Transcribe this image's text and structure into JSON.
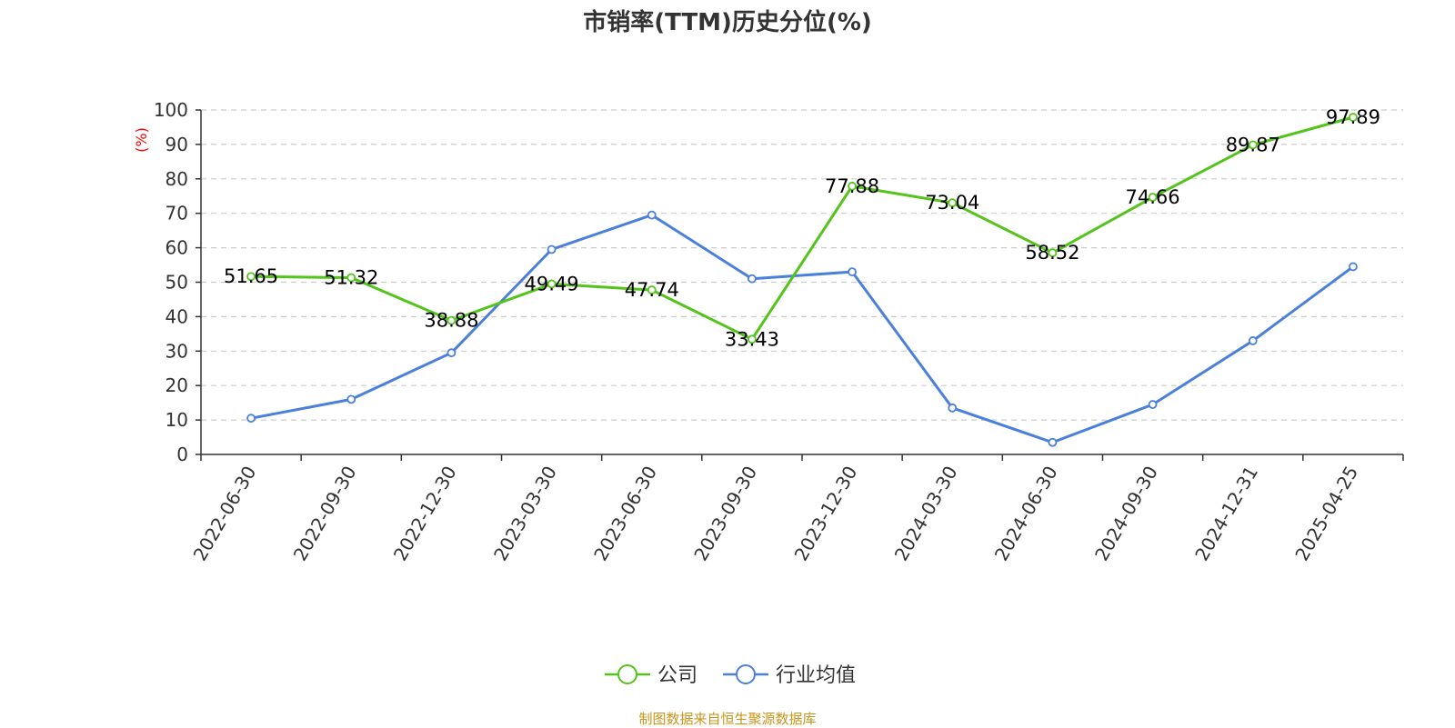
{
  "chart_data": {
    "type": "line",
    "title": "市销率(TTM)历史分位(%)",
    "ylabel": "(%)",
    "xlabel": "",
    "categories": [
      "2022-06-30",
      "2022-09-30",
      "2022-12-30",
      "2023-03-30",
      "2023-06-30",
      "2023-09-30",
      "2023-12-30",
      "2024-03-30",
      "2024-06-30",
      "2024-09-30",
      "2024-12-31",
      "2025-04-25"
    ],
    "yticks": [
      "0",
      "10",
      "20",
      "30",
      "40",
      "50",
      "60",
      "70",
      "80",
      "90",
      "100"
    ],
    "ylim": [
      0,
      100
    ],
    "grid": true,
    "legend_position": "bottom",
    "series": [
      {
        "name": "公司",
        "color": "#52c41a",
        "values": [
          51.65,
          51.32,
          38.88,
          49.49,
          47.74,
          33.43,
          77.88,
          73.04,
          58.52,
          74.66,
          89.87,
          97.89
        ],
        "labels": [
          "51.65",
          "51.32",
          "38.88",
          "49.49",
          "47.74",
          "33.43",
          "77.88",
          "73.04",
          "58.52",
          "74.66",
          "89.87",
          "97.89"
        ]
      },
      {
        "name": "行业均值",
        "color": "#4a7fdc",
        "values": [
          10.5,
          16.0,
          29.5,
          59.5,
          69.5,
          51.0,
          53.0,
          13.5,
          3.5,
          14.5,
          33.0,
          54.5
        ]
      }
    ]
  },
  "source_text": "制图数据来自恒生聚源数据库"
}
